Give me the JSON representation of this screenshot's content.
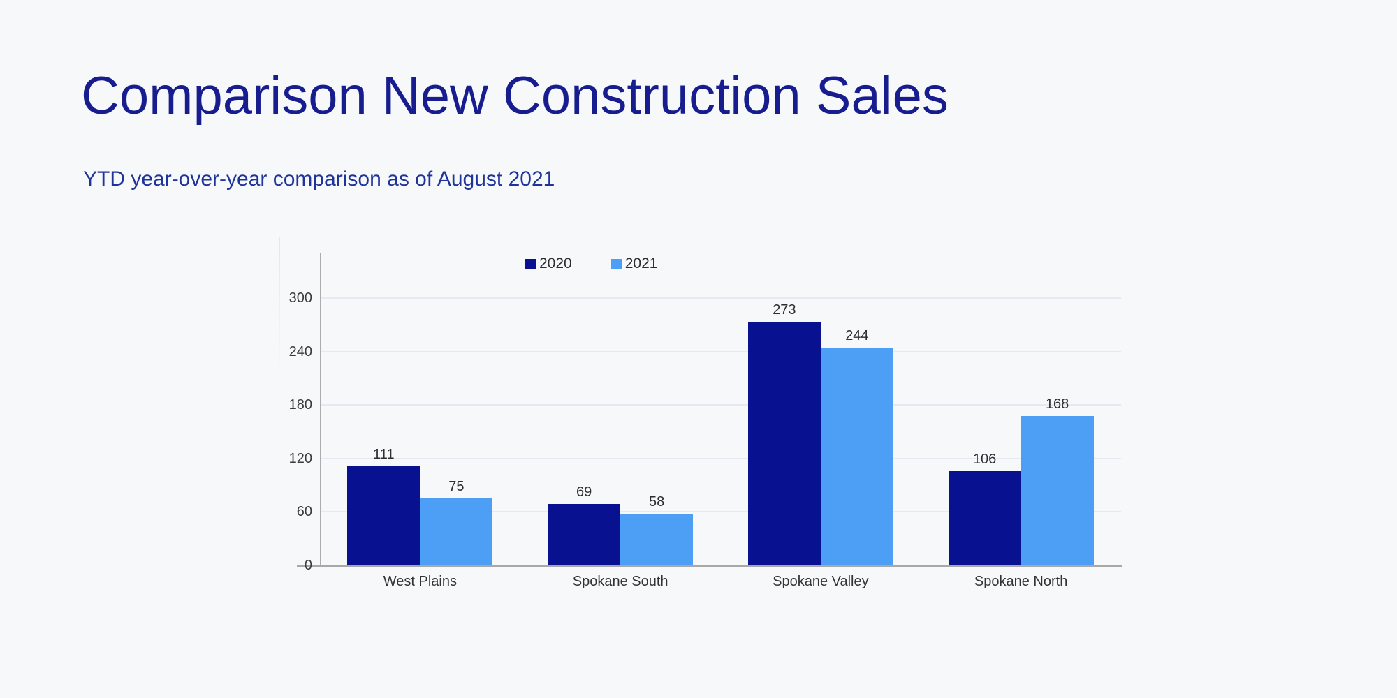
{
  "header": {
    "title": "Comparison New Construction Sales",
    "subtitle": "YTD year-over-year comparison as of August 2021"
  },
  "chart_data": {
    "type": "bar",
    "title": "Comparison New Construction Sales",
    "subtitle": "YTD year-over-year comparison as of August 2021",
    "categories": [
      "West Plains",
      "Spokane South",
      "Spokane Valley",
      "Spokane North"
    ],
    "series": [
      {
        "name": "2020",
        "color": "#081190",
        "values": [
          111,
          69,
          273,
          106
        ]
      },
      {
        "name": "2021",
        "color": "#4d9ff6",
        "values": [
          75,
          58,
          244,
          168
        ]
      }
    ],
    "xlabel": "",
    "ylabel": "",
    "ylim": [
      0,
      300
    ],
    "yticks": [
      0,
      60,
      120,
      180,
      240,
      300
    ],
    "grid": true,
    "legend_position": "top",
    "value_labels": true
  },
  "colors": {
    "background": "#f7f8fa",
    "title_text": "#171d8e",
    "subtitle_text": "#1e349b",
    "axis_line": "#acacac",
    "gridline": "#e3eaf3",
    "label_text": "#2e2e2e"
  }
}
